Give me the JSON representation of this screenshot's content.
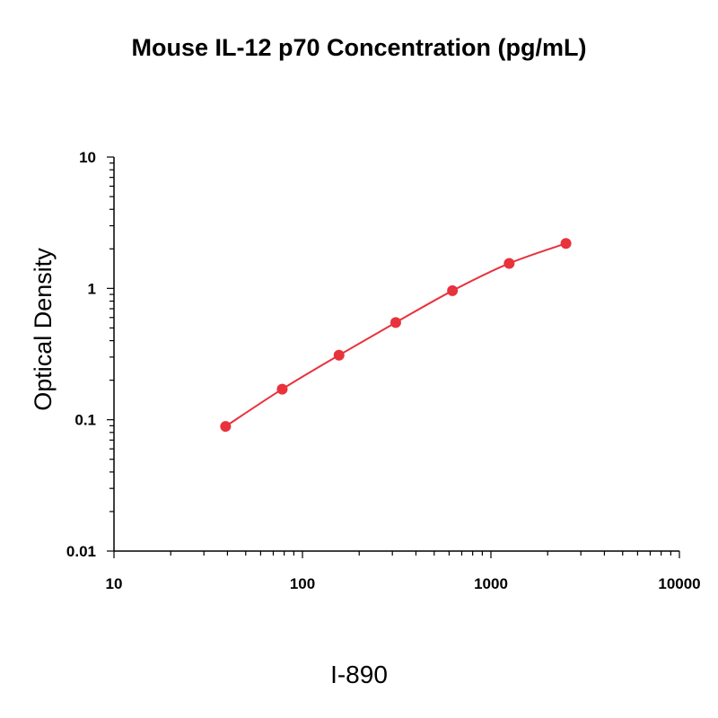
{
  "chart_data": {
    "type": "line",
    "title": "Mouse IL-12 p70 Concentration (pg/mL)",
    "xlabel": "",
    "ylabel": "Optical Density",
    "x_scale": "log",
    "y_scale": "log",
    "xlim": [
      10,
      10000
    ],
    "ylim": [
      0.01,
      10
    ],
    "x_ticks": [
      10,
      100,
      1000,
      10000
    ],
    "x_tick_labels": [
      "10",
      "100",
      "1000",
      "10000"
    ],
    "y_ticks": [
      0.01,
      0.1,
      1,
      10
    ],
    "y_tick_labels": [
      "0.01",
      "0.1",
      "1",
      "10"
    ],
    "grid": false,
    "series": [
      {
        "color": "#e8323c",
        "x": [
          39.1,
          78.1,
          156.3,
          312.5,
          625,
          1250,
          2500
        ],
        "y": [
          0.089,
          0.171,
          0.31,
          0.55,
          0.96,
          1.55,
          2.2
        ]
      }
    ]
  },
  "footer": "I-890"
}
